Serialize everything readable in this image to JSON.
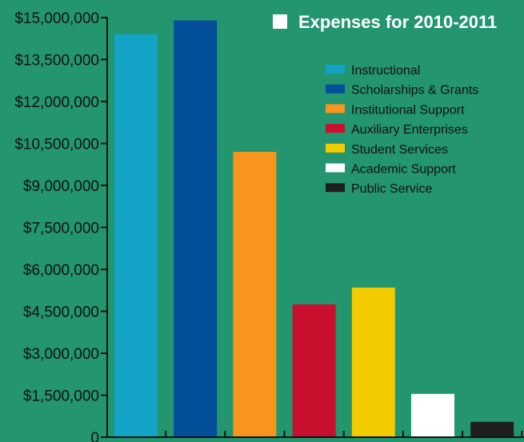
{
  "chart_data": {
    "type": "bar",
    "title": "Expenses for 2010-2011",
    "categories": [
      "Instructional",
      "Scholarships & Grants",
      "Institutional Support",
      "Auxiliary Enterprises",
      "Student Services",
      "Academic Support",
      "Public Service"
    ],
    "values": [
      14400000,
      14900000,
      10200000,
      4750000,
      5350000,
      1550000,
      550000
    ],
    "colors": [
      "#12a3c6",
      "#034f9a",
      "#f7951e",
      "#c8102e",
      "#f2cb00",
      "#ffffff",
      "#1e1e1e"
    ],
    "ylim": [
      0,
      15000000
    ],
    "yticks": [
      "0",
      "$1,500,000",
      "$3,000,000",
      "$4,500,000",
      "$6,000,000",
      "$7,500,000",
      "$9,000,000",
      "$10,500,000",
      "$12,000,000",
      "$13,500,000",
      "$15,000,000"
    ],
    "ytick_values": [
      0,
      1500000,
      3000000,
      4500000,
      6000000,
      7500000,
      9000000,
      10500000,
      12000000,
      13500000,
      15000000
    ],
    "legend_position": "top-right",
    "grid": false,
    "background": "#23956f",
    "axis_color": "#111111",
    "title_color": "#ffffff"
  }
}
